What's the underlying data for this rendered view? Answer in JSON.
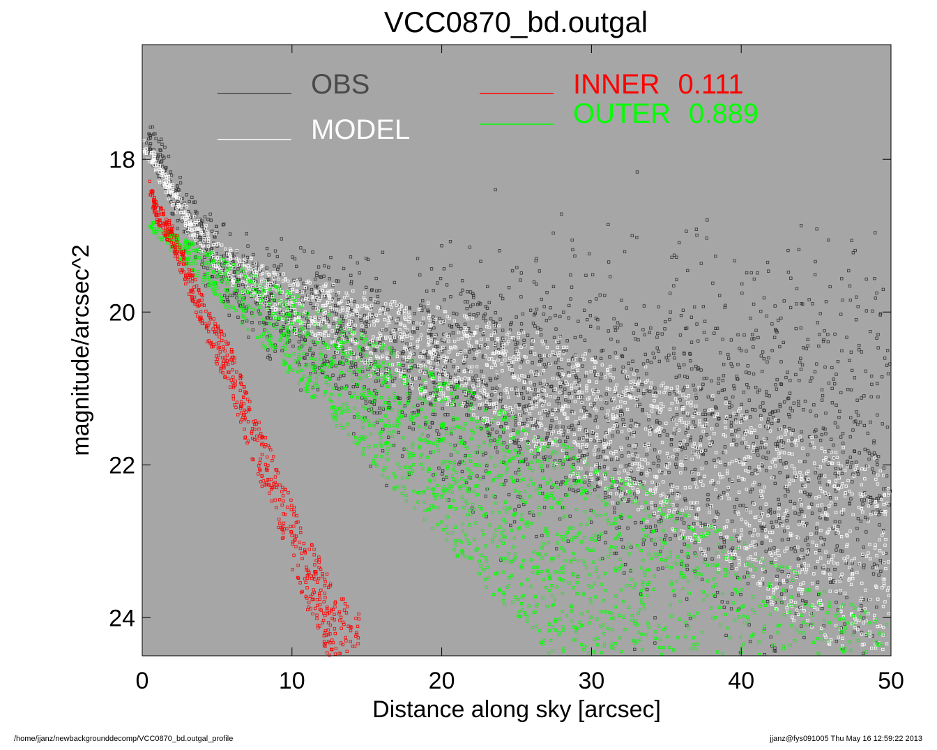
{
  "chart_data": {
    "type": "scatter",
    "title": "VCC0870_bd.outgal",
    "xlabel": "Distance along sky [arcsec]",
    "ylabel": "magnitude/arcsec^2",
    "xlim": [
      0,
      50
    ],
    "ylim": [
      24.5,
      16.5
    ],
    "y_inverted": true,
    "grid": false,
    "background_color": "#a6a6a6",
    "x_ticks": [
      0,
      10,
      20,
      30,
      40,
      50
    ],
    "y_ticks": [
      18,
      20,
      22,
      24
    ],
    "x_tick_labels": [
      "0",
      "10",
      "20",
      "30",
      "40",
      "50"
    ],
    "y_tick_labels": [
      "18",
      "20",
      "22",
      "24"
    ],
    "legend_placement": "top",
    "legend": [
      {
        "key": "obs",
        "label": "OBS",
        "color": "#4a4a4a"
      },
      {
        "key": "model",
        "label": "MODEL",
        "color": "#ffffff"
      },
      {
        "key": "inner",
        "label": "INNER",
        "value": "0.111",
        "color": "#ff0000"
      },
      {
        "key": "outer",
        "label": "OUTER",
        "value": "0.889",
        "color": "#00ff00"
      }
    ],
    "series": [
      {
        "name": "OBS",
        "color": "#333333",
        "x": [
          0.3,
          1,
          2,
          3,
          5,
          7.5,
          10,
          15,
          20,
          25,
          30,
          35,
          40,
          45,
          50
        ],
        "y": [
          17.7,
          18.0,
          18.4,
          18.8,
          19.3,
          19.7,
          20.0,
          20.4,
          20.7,
          20.95,
          21.2,
          21.45,
          21.65,
          21.85,
          22.0
        ]
      },
      {
        "name": "MODEL",
        "color": "#ffffff",
        "x": [
          0,
          1,
          2,
          3,
          5,
          7.5,
          10,
          15,
          20,
          25,
          30,
          35,
          40,
          45,
          50
        ],
        "y": [
          17.8,
          18.1,
          18.45,
          18.8,
          19.25,
          19.6,
          19.85,
          20.25,
          20.6,
          20.95,
          21.4,
          21.9,
          22.4,
          22.95,
          23.5
        ]
      },
      {
        "name": "INNER",
        "color": "#ff0000",
        "x": [
          0.5,
          1,
          2,
          3,
          4,
          5,
          6,
          7,
          8,
          9,
          10,
          11,
          12,
          13,
          14.5
        ],
        "y": [
          18.4,
          18.7,
          19.0,
          19.5,
          20.0,
          20.4,
          20.8,
          21.4,
          21.9,
          22.4,
          22.9,
          23.4,
          23.8,
          24.2,
          24.5
        ]
      },
      {
        "name": "OUTER",
        "color": "#00ff00",
        "x": [
          0.5,
          2,
          4,
          6,
          10,
          15,
          20,
          25,
          30,
          35,
          40,
          45,
          50
        ],
        "y": [
          18.8,
          18.95,
          19.15,
          19.35,
          19.75,
          20.3,
          20.85,
          21.35,
          21.9,
          22.45,
          23.0,
          23.55,
          24.1
        ]
      }
    ]
  },
  "footer": {
    "left": "/home/jjanz/newbackgrounddecomp/VCC0870_bd.outgal_profile",
    "right": "jjanz@fys091005  Thu May 16 12:59:22 2013"
  }
}
